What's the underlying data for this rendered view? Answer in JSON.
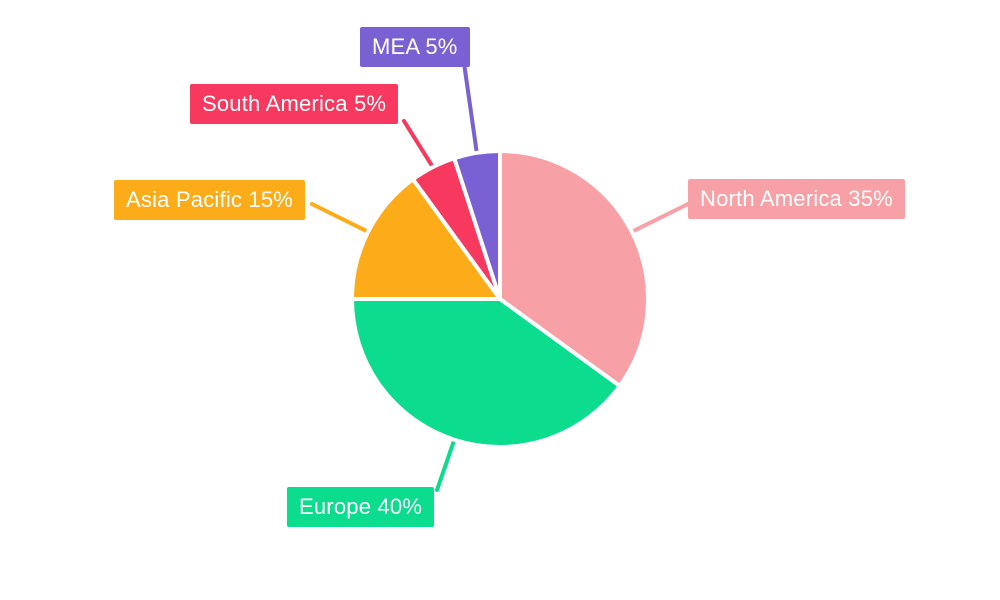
{
  "chart_data": {
    "type": "pie",
    "title": "",
    "categories": [
      "North America",
      "Europe",
      "Asia Pacific",
      "South America",
      "MEA"
    ],
    "values": [
      35,
      40,
      15,
      5,
      5
    ],
    "unit": "percent",
    "direction": "clockwise",
    "start_angle": "12-o-clock",
    "legend_position": "none",
    "background_color": "#FFFFFF",
    "label_text_color": "#FFFFFF",
    "label_style": "external-boxes-with-leader-lines",
    "slices": [
      {
        "category": "North America",
        "value": 35,
        "label": "North America 35%",
        "color": "#F7A1A6"
      },
      {
        "category": "Europe",
        "value": 40,
        "label": "Europe 40%",
        "color": "#0BDC8E"
      },
      {
        "category": "Asia Pacific",
        "value": 15,
        "label": "Asia Pacific 15%",
        "color": "#FBAC18"
      },
      {
        "category": "South America",
        "value": 5,
        "label": "South America 5%",
        "color": "#F8395F"
      },
      {
        "category": "MEA",
        "value": 5,
        "label": "MEA 5%",
        "color": "#7A61D3"
      }
    ]
  }
}
